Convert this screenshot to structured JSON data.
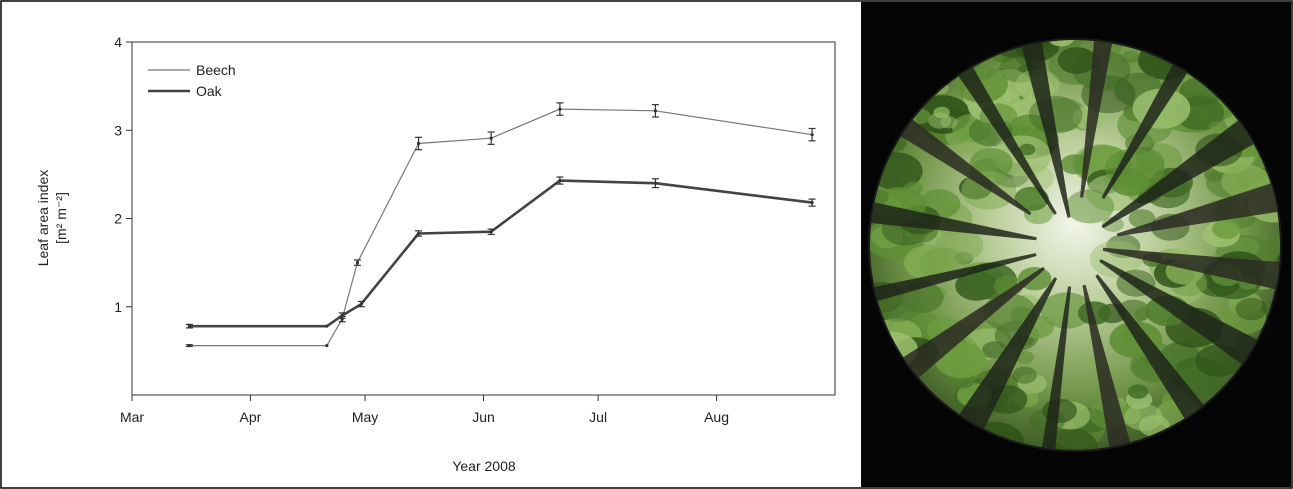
{
  "chart_data": {
    "type": "line",
    "xlabel": "Year 2008",
    "ylabel_line1": "Leaf area index",
    "ylabel_line2": "[m² m⁻²]",
    "x_ticks": [
      "Mar",
      "Apr",
      "May",
      "Jun",
      "Jul",
      "Aug"
    ],
    "y_ticks": [
      1,
      2,
      3,
      4
    ],
    "ylim": [
      0,
      4
    ],
    "xlim": [
      "2008-03-01",
      "2008-09-01"
    ],
    "legend_position": "top-left",
    "series": [
      {
        "name": "Beech",
        "style": "thin",
        "points": [
          {
            "x": "2008-03-16",
            "y": 0.56,
            "err": 0.01
          },
          {
            "x": "2008-04-21",
            "y": 0.56,
            "err": 0.0
          },
          {
            "x": "2008-04-25",
            "y": 0.86,
            "err": 0.03
          },
          {
            "x": "2008-04-29",
            "y": 1.5,
            "err": 0.03
          },
          {
            "x": "2008-05-15",
            "y": 2.85,
            "err": 0.07
          },
          {
            "x": "2008-06-03",
            "y": 2.91,
            "err": 0.07
          },
          {
            "x": "2008-06-21",
            "y": 3.24,
            "err": 0.07
          },
          {
            "x": "2008-07-16",
            "y": 3.22,
            "err": 0.07
          },
          {
            "x": "2008-08-26",
            "y": 2.95,
            "err": 0.07
          }
        ]
      },
      {
        "name": "Oak",
        "style": "thick",
        "points": [
          {
            "x": "2008-03-16",
            "y": 0.78,
            "err": 0.02
          },
          {
            "x": "2008-04-21",
            "y": 0.78,
            "err": 0.0
          },
          {
            "x": "2008-04-25",
            "y": 0.9,
            "err": 0.03
          },
          {
            "x": "2008-04-30",
            "y": 1.03,
            "err": 0.03
          },
          {
            "x": "2008-05-15",
            "y": 1.83,
            "err": 0.03
          },
          {
            "x": "2008-06-03",
            "y": 1.85,
            "err": 0.03
          },
          {
            "x": "2008-06-21",
            "y": 2.43,
            "err": 0.04
          },
          {
            "x": "2008-07-16",
            "y": 2.4,
            "err": 0.05
          },
          {
            "x": "2008-08-26",
            "y": 2.18,
            "err": 0.04
          }
        ]
      }
    ]
  },
  "photo": {
    "subject": "hemispherical-canopy-photograph"
  }
}
